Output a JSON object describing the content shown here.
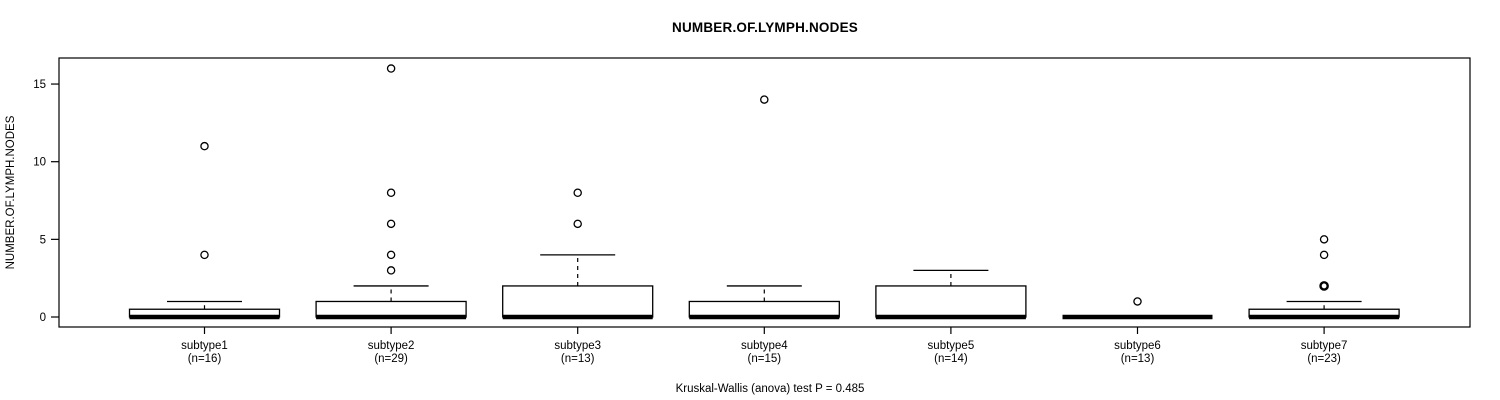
{
  "colors": {
    "foreground": "#000000",
    "background": "#ffffff"
  },
  "chart_data": {
    "type": "boxplot",
    "title": "NUMBER.OF.LYMPH.NODES",
    "ylabel": "NUMBER.OF.LYMPH.NODES",
    "xlabel": "",
    "caption": "Kruskal-Wallis (anova) test P = 0.485",
    "yticks": [
      0,
      5,
      10,
      15
    ],
    "ylim": [
      -0.6,
      16.7
    ],
    "grid": false,
    "legend": "none",
    "groups": [
      {
        "label": "subtype1",
        "n_label": "(n=16)",
        "n": 16,
        "median": 0,
        "q1": 0,
        "q3": 0.5,
        "whisker_low": 0,
        "whisker_high": 1,
        "outliers": [
          4,
          11
        ]
      },
      {
        "label": "subtype2",
        "n_label": "(n=29)",
        "n": 29,
        "median": 0,
        "q1": 0,
        "q3": 1,
        "whisker_low": 0,
        "whisker_high": 2,
        "outliers": [
          3,
          4,
          6,
          8,
          16
        ]
      },
      {
        "label": "subtype3",
        "n_label": "(n=13)",
        "n": 13,
        "median": 0,
        "q1": 0,
        "q3": 2,
        "whisker_low": 0,
        "whisker_high": 4,
        "outliers": [
          6,
          8
        ]
      },
      {
        "label": "subtype4",
        "n_label": "(n=15)",
        "n": 15,
        "median": 0,
        "q1": 0,
        "q3": 1,
        "whisker_low": 0,
        "whisker_high": 2,
        "outliers": [
          14
        ]
      },
      {
        "label": "subtype5",
        "n_label": "(n=14)",
        "n": 14,
        "median": 0,
        "q1": 0,
        "q3": 2,
        "whisker_low": 0,
        "whisker_high": 3,
        "outliers": []
      },
      {
        "label": "subtype6",
        "n_label": "(n=13)",
        "n": 13,
        "median": 0,
        "q1": 0,
        "q3": 0,
        "whisker_low": 0,
        "whisker_high": 0,
        "outliers": [
          1
        ]
      },
      {
        "label": "subtype7",
        "n_label": "(n=23)",
        "n": 23,
        "median": 0,
        "q1": 0,
        "q3": 0.5,
        "whisker_low": 0,
        "whisker_high": 1,
        "outliers": [
          2,
          2,
          4,
          5
        ]
      }
    ]
  }
}
